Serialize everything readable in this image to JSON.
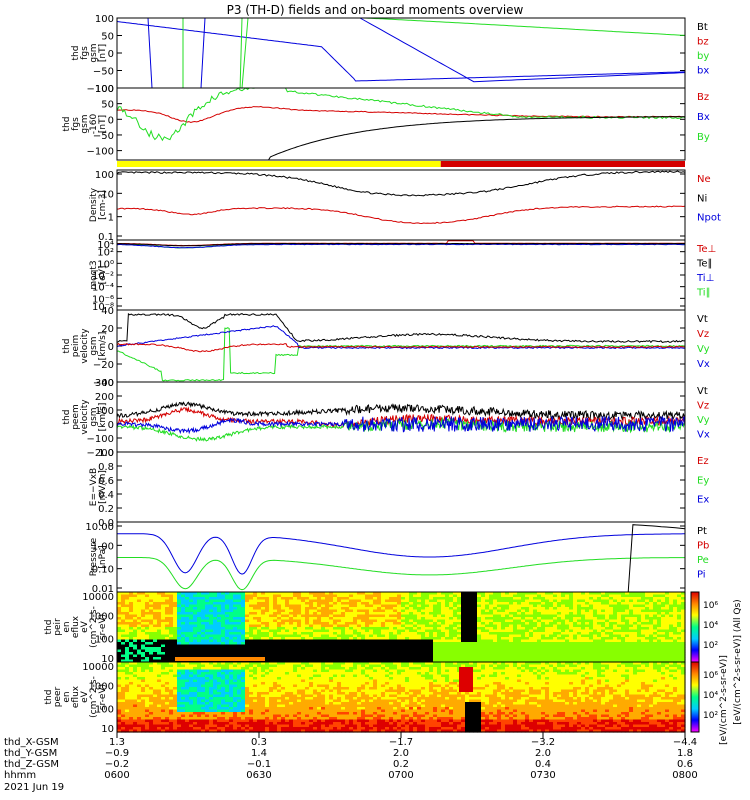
{
  "title": "P3 (TH-D) fields and on-board moments overview",
  "colors": {
    "black": "#000000",
    "red": "#d40000",
    "green": "#22dd22",
    "blue": "#0000dd",
    "yellow": "#ffff00"
  },
  "chart_data": {
    "type": "line",
    "panels": [
      {
        "key": "fgs",
        "ylabel": [
          "thd",
          "fgs",
          "gsm",
          "[nT]"
        ],
        "ylim": [
          -100,
          100
        ],
        "ticks": [
          "100",
          "50",
          "0",
          "−50",
          "−100"
        ],
        "tick_values": [
          100,
          50,
          0,
          -50,
          -100
        ],
        "legend": [
          {
            "label": "Bt",
            "color": "black"
          },
          {
            "label": "bz",
            "color": "red"
          },
          {
            "label": "by",
            "color": "green"
          },
          {
            "label": "bx",
            "color": "blue"
          }
        ]
      },
      {
        "key": "fgs_rot",
        "ylabel": [
          "thd",
          "fgs",
          "gsm",
          "-160",
          "[nT]"
        ],
        "ylim": [
          -130,
          100
        ],
        "ticks": [
          "100",
          "50",
          "0",
          "−50",
          "−100"
        ],
        "tick_values": [
          100,
          50,
          0,
          -50,
          -100
        ],
        "legend": [
          {
            "label": "Bz",
            "color": "red"
          },
          {
            "label": "Bx",
            "color": "blue"
          },
          {
            "label": "By",
            "color": "green"
          }
        ],
        "mode_bar": [
          {
            "from": 0.0,
            "to": 0.57,
            "color": "yellow"
          },
          {
            "from": 0.57,
            "to": 1.0,
            "color": "red"
          }
        ]
      },
      {
        "key": "density",
        "ylabel": [
          "Density",
          "[cm-3]"
        ],
        "ticks": [
          "100",
          "10",
          "1",
          "0.1"
        ],
        "tick_values": [
          100,
          10,
          1,
          0.1
        ],
        "legend": [
          {
            "label": "Ne",
            "color": "red"
          },
          {
            "label": "Ni",
            "color": "black"
          },
          {
            "label": "Npot",
            "color": "blue"
          }
        ]
      },
      {
        "key": "temp",
        "ylabel": [
          "moqt3",
          "[eV]"
        ],
        "ticks": [
          "10⁴",
          "10²",
          "10⁰",
          "10⁻²",
          "10⁻⁴",
          "10⁻⁶",
          "10⁻⁸"
        ],
        "legend": [
          {
            "label": "Te⊥",
            "color": "red"
          },
          {
            "label": "Te∥",
            "color": "black"
          },
          {
            "label": "Ti⊥",
            "color": "blue"
          },
          {
            "label": "Ti∥",
            "color": "green"
          }
        ]
      },
      {
        "key": "peim",
        "ylabel": [
          "thd",
          "peim",
          "velocity",
          "gsm",
          "[km/s]"
        ],
        "ylim": [
          -40,
          40
        ],
        "ticks": [
          "40",
          "20",
          "0",
          "−20",
          "−40"
        ],
        "tick_values": [
          40,
          20,
          0,
          -20,
          -40
        ],
        "legend": [
          {
            "label": "Vt",
            "color": "black"
          },
          {
            "label": "Vz",
            "color": "red"
          },
          {
            "label": "Vy",
            "color": "green"
          },
          {
            "label": "Vx",
            "color": "blue"
          }
        ]
      },
      {
        "key": "peem",
        "ylabel": [
          "thd",
          "peem",
          "velocity",
          "gsm",
          "[km/s]"
        ],
        "ylim": [
          -200,
          300
        ],
        "ticks": [
          "300",
          "200",
          "100",
          "0",
          "−100",
          "−200"
        ],
        "tick_values": [
          300,
          200,
          100,
          0,
          -100,
          -200
        ],
        "legend": [
          {
            "label": "Vt",
            "color": "black"
          },
          {
            "label": "Vz",
            "color": "red"
          },
          {
            "label": "Vy",
            "color": "green"
          },
          {
            "label": "Vx",
            "color": "blue"
          }
        ]
      },
      {
        "key": "efield",
        "ylabel": [
          "E=−VxB",
          "[mV/m]"
        ],
        "ylim": [
          0,
          1
        ],
        "ticks": [
          "1.0",
          "0.8",
          "0.6",
          "0.4",
          "0.2",
          "0.0"
        ],
        "tick_values": [
          1,
          0.8,
          0.6,
          0.4,
          0.2,
          0
        ],
        "legend": [
          {
            "label": "Ez",
            "color": "red"
          },
          {
            "label": "Ey",
            "color": "green"
          },
          {
            "label": "Ex",
            "color": "blue"
          }
        ]
      },
      {
        "key": "pressure",
        "ylabel": [
          "Pressure",
          "[nPa]"
        ],
        "ticks": [
          "10.00",
          "1.00",
          "0.10",
          "0.01"
        ],
        "tick_values": [
          10,
          1,
          0.1,
          0.01
        ],
        "legend": [
          {
            "label": "Pt",
            "color": "black"
          },
          {
            "label": "Pb",
            "color": "red"
          },
          {
            "label": "Pe",
            "color": "green"
          },
          {
            "label": "Pi",
            "color": "blue"
          }
        ]
      },
      {
        "key": "peir",
        "ylabel": [
          "thd",
          "peir",
          "en",
          "eflux",
          "eV",
          "(cm^2-s-",
          "sr-eV)"
        ],
        "ticks": [
          "10000",
          "1000",
          "100",
          "10"
        ],
        "tick_values": [
          10000,
          1000,
          100,
          10
        ],
        "colorbar_ticks": [
          "10⁶",
          "10⁴",
          "10²"
        ],
        "colorbar_label": "[eV/(cm^2-s-sr-eV)] (All Qs)"
      },
      {
        "key": "peer",
        "ylabel": [
          "thd",
          "peer",
          "en",
          "eflux",
          "eV",
          "(cm^2-s-",
          "sr-eV)"
        ],
        "ticks": [
          "10000",
          "1000",
          "100",
          "10"
        ],
        "tick_values": [
          10000,
          1000,
          100,
          10
        ],
        "colorbar_ticks": [
          "10⁶",
          "10⁴",
          "10²"
        ],
        "colorbar_label": "[eV/(cm^2-s-sr-eV)]"
      }
    ],
    "xaxis": {
      "rows": [
        {
          "label": "thd_X-GSM",
          "values": [
            "1.3",
            "0.3",
            "−1.7",
            "−3.2",
            "−4.4"
          ]
        },
        {
          "label": "thd_Y-GSM",
          "values": [
            "−0.9",
            "1.4",
            "2.0",
            "2.0",
            "1.8"
          ]
        },
        {
          "label": "thd_Z-GSM",
          "values": [
            "−0.2",
            "−0.1",
            "0.2",
            "0.4",
            "0.6"
          ]
        },
        {
          "label": "hhmm",
          "values": [
            "0600",
            "0630",
            "0700",
            "0730",
            "0800"
          ]
        }
      ],
      "date": "2021 Jun 19",
      "ticks_time": [
        "0600",
        "0630",
        "0700",
        "0730",
        "0800"
      ]
    }
  }
}
